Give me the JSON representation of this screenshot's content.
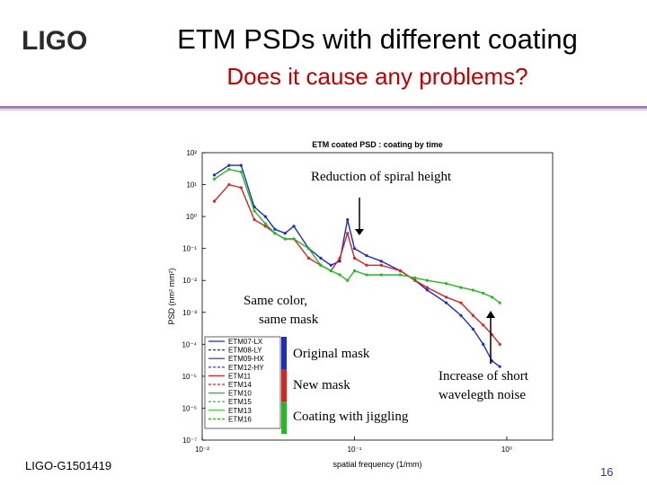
{
  "logo": {
    "text": "LIGO"
  },
  "slide": {
    "title": "ETM PSDs with different coating",
    "subtitle": "Does it cause any problems?",
    "footer_id": "LIGO-G1501419",
    "page_number": "16"
  },
  "annotations": {
    "spiral": "Reduction of spiral height",
    "same_color_1": "Same color,",
    "same_color_2": "same mask",
    "original_mask": "Original mask",
    "new_mask": "New mask",
    "jiggling": "Coating with jiggling",
    "increase_1": "Increase of short",
    "increase_2": "wavelegth noise"
  },
  "colors": {
    "original": "#1a2bcc",
    "new": "#dd2222",
    "jiggling": "#22bb22"
  },
  "chart_data": {
    "type": "line",
    "title": "ETM coated PSD : coating by time",
    "xlabel": "spatial frequency (1/mm)",
    "ylabel": "PSD (nm² mm²)",
    "x_scale": "log",
    "y_scale": "log",
    "xlim": [
      0.01,
      2
    ],
    "ylim": [
      1e-07,
      100
    ],
    "x_ticks": [
      "10⁻²",
      "10⁻¹",
      "10⁰"
    ],
    "y_ticks": [
      "10²",
      "10¹",
      "10⁰",
      "10⁻¹",
      "10⁻²",
      "10⁻³",
      "10⁻⁴",
      "10⁻⁵",
      "10⁻⁶",
      "10⁻⁷"
    ],
    "legend": [
      "ETM07-LX",
      "ETM08-LY",
      "ETM09-HX",
      "ETM12-HY",
      "ETM11",
      "ETM14",
      "ETM10",
      "ETM15",
      "ETM13",
      "ETM16"
    ],
    "legend_position": "bottom-left",
    "series": [
      {
        "name": "ETM07-LX",
        "color": "#1a2bcc",
        "x": [
          0.012,
          0.015,
          0.018,
          0.022,
          0.026,
          0.03,
          0.035,
          0.04,
          0.05,
          0.06,
          0.07,
          0.08,
          0.09,
          0.1,
          0.12,
          0.15,
          0.2,
          0.25,
          0.3,
          0.4,
          0.5,
          0.6,
          0.7,
          0.8,
          0.9
        ],
        "y": [
          20,
          40,
          40,
          2,
          1,
          0.4,
          0.3,
          0.5,
          0.1,
          0.05,
          0.03,
          0.04,
          0.8,
          0.1,
          0.06,
          0.04,
          0.02,
          0.01,
          0.005,
          0.002,
          0.0008,
          0.0003,
          0.0001,
          3e-05,
          2e-05
        ]
      },
      {
        "name": "ETM11",
        "color": "#dd2222",
        "x": [
          0.012,
          0.015,
          0.018,
          0.022,
          0.026,
          0.03,
          0.035,
          0.04,
          0.05,
          0.06,
          0.07,
          0.08,
          0.09,
          0.1,
          0.12,
          0.15,
          0.2,
          0.25,
          0.3,
          0.4,
          0.5,
          0.6,
          0.7,
          0.8,
          0.9
        ],
        "y": [
          3,
          10,
          8,
          0.8,
          0.5,
          0.3,
          0.2,
          0.2,
          0.05,
          0.03,
          0.02,
          0.05,
          0.3,
          0.05,
          0.03,
          0.03,
          0.02,
          0.01,
          0.006,
          0.003,
          0.002,
          0.0008,
          0.0004,
          0.0002,
          0.0001
        ]
      },
      {
        "name": "ETM10",
        "color": "#22bb22",
        "x": [
          0.012,
          0.015,
          0.018,
          0.022,
          0.026,
          0.03,
          0.035,
          0.04,
          0.05,
          0.06,
          0.07,
          0.08,
          0.09,
          0.1,
          0.12,
          0.15,
          0.2,
          0.25,
          0.3,
          0.4,
          0.5,
          0.6,
          0.7,
          0.8,
          0.9
        ],
        "y": [
          15,
          30,
          25,
          1.5,
          0.6,
          0.3,
          0.2,
          0.2,
          0.1,
          0.03,
          0.02,
          0.015,
          0.01,
          0.02,
          0.015,
          0.015,
          0.015,
          0.012,
          0.01,
          0.008,
          0.006,
          0.005,
          0.004,
          0.003,
          0.002
        ]
      }
    ]
  }
}
